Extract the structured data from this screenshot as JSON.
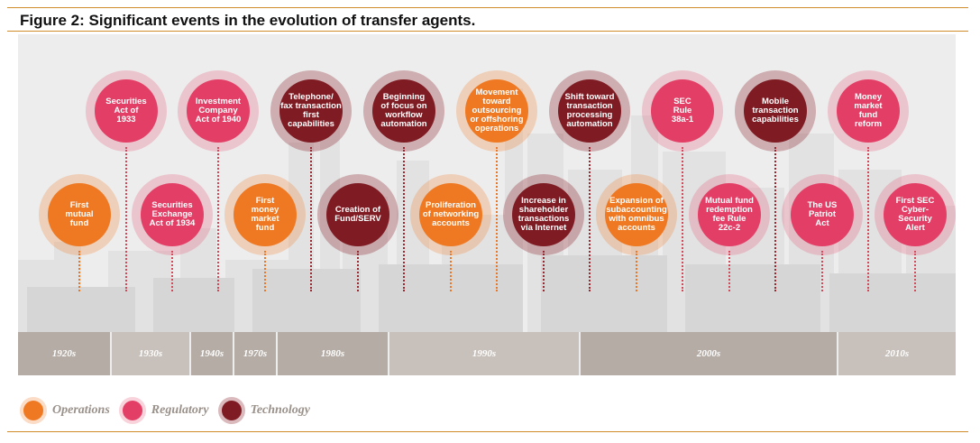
{
  "figure": {
    "title": "Figure 2: Significant events in the evolution of transfer agents."
  },
  "colors": {
    "operations": "#ef7922",
    "regulatory": "#e33f66",
    "technology": "#7e1b23",
    "rule": "#d08b2a"
  },
  "events_top": [
    {
      "text": "Securities\nAct of\n1933",
      "category": "regulatory"
    },
    {
      "text": "Investment\nCompany\nAct of 1940",
      "category": "regulatory"
    },
    {
      "text": "Telephone/\nfax transaction\nfirst\ncapabilities",
      "category": "technology"
    },
    {
      "text": "Beginning\nof focus on\nworkflow\nautomation",
      "category": "technology"
    },
    {
      "text": "Movement\ntoward\noutsourcing\nor offshoring\noperations",
      "category": "operations"
    },
    {
      "text": "Shift toward\ntransaction\nprocessing\nautomation",
      "category": "technology"
    },
    {
      "text": "SEC\nRule\n38a-1",
      "category": "regulatory"
    },
    {
      "text": "Mobile\ntransaction\ncapabilities",
      "category": "technology"
    },
    {
      "text": "Money\nmarket\nfund\nreform",
      "category": "regulatory"
    }
  ],
  "events_bottom": [
    {
      "text": "First\nmutual\nfund",
      "category": "operations"
    },
    {
      "text": "Securities\nExchange\nAct of 1934",
      "category": "regulatory"
    },
    {
      "text": "First\nmoney\nmarket\nfund",
      "category": "operations"
    },
    {
      "text": "Creation of\nFund/SERV",
      "category": "technology"
    },
    {
      "text": "Proliferation\nof networking\naccounts",
      "category": "operations"
    },
    {
      "text": "Increase in\nshareholder\ntransactions\nvia Internet",
      "category": "technology"
    },
    {
      "text": "Expansion of\nsubaccounting\nwith omnibus\naccounts",
      "category": "operations"
    },
    {
      "text": "Mutual fund\nredemption\nfee Rule\n22c-2",
      "category": "regulatory"
    },
    {
      "text": "The US\nPatriot\nAct",
      "category": "regulatory"
    },
    {
      "text": "First SEC\nCyber-\nSecurity\nAlert",
      "category": "regulatory"
    }
  ],
  "eras": [
    "1920s",
    "1930s",
    "1940s",
    "1970s",
    "1980s",
    "1990s",
    "2000s",
    "2010s"
  ],
  "legend": [
    {
      "label": "Operations",
      "category": "operations"
    },
    {
      "label": "Regulatory",
      "category": "regulatory"
    },
    {
      "label": "Technology",
      "category": "technology"
    }
  ]
}
